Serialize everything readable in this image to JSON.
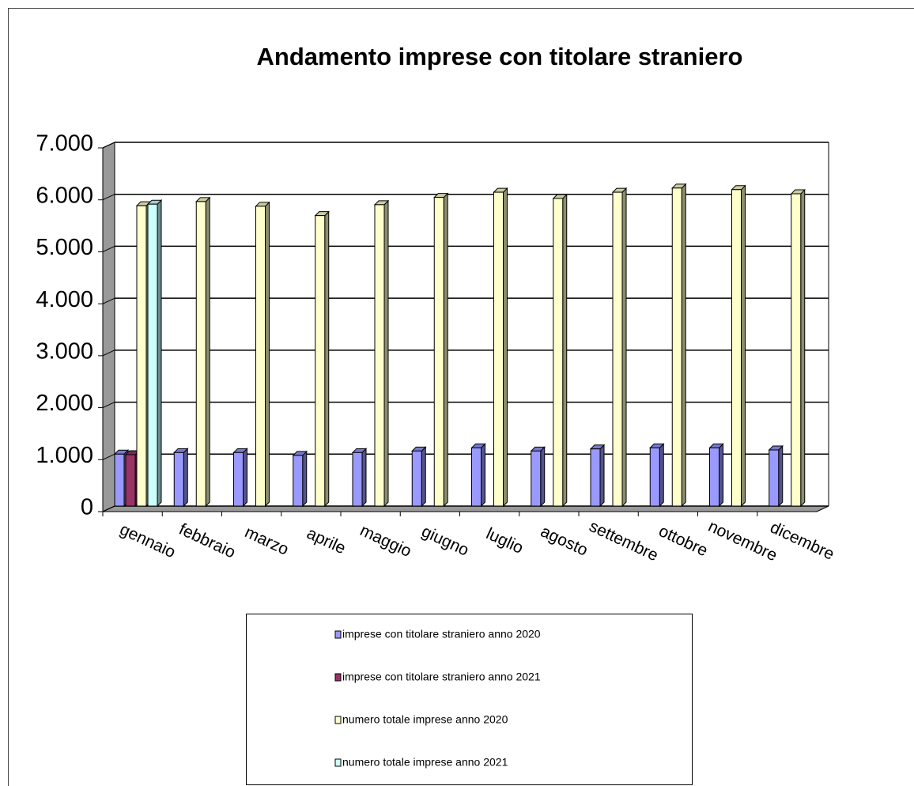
{
  "chart_data": {
    "type": "bar3d",
    "title": "Andamento imprese con titolare straniero",
    "categories": [
      "gennaio",
      "febbraio",
      "marzo",
      "aprile",
      "maggio",
      "giugno",
      "luglio",
      "agosto",
      "settembre",
      "ottobre",
      "novembre",
      "dicembre"
    ],
    "series": [
      {
        "name": "imprese con titolare straniero anno 2020",
        "color": "#9999ff",
        "values": [
          1000,
          1030,
          1030,
          975,
          1030,
          1060,
          1120,
          1060,
          1100,
          1120,
          1120,
          1080
        ]
      },
      {
        "name": "imprese con titolare straniero anno 2021",
        "color": "#993366",
        "values": [
          990,
          null,
          null,
          null,
          null,
          null,
          null,
          null,
          null,
          null,
          null,
          null
        ]
      },
      {
        "name": "numero totale imprese anno 2020",
        "color": "#ffffcc",
        "values": [
          5780,
          5860,
          5770,
          5590,
          5800,
          5940,
          6040,
          5920,
          6040,
          6120,
          6090,
          6010
        ]
      },
      {
        "name": "numero totale imprese anno 2021",
        "color": "#ccffff",
        "values": [
          5810,
          null,
          null,
          null,
          null,
          null,
          null,
          null,
          null,
          null,
          null,
          null
        ]
      }
    ],
    "ylim": [
      0,
      7000
    ],
    "yticks": [
      0,
      {
        "value": 1000,
        "label": "1.000"
      },
      {
        "value": 2000,
        "label": "2.000"
      },
      {
        "value": 3000,
        "label": "3.000"
      },
      {
        "value": 4000,
        "label": "4.000"
      },
      {
        "value": 5000,
        "label": "5.000"
      },
      {
        "value": 6000,
        "label": "6.000"
      },
      {
        "value": 7000,
        "label": "7.000"
      }
    ],
    "grid": true
  }
}
